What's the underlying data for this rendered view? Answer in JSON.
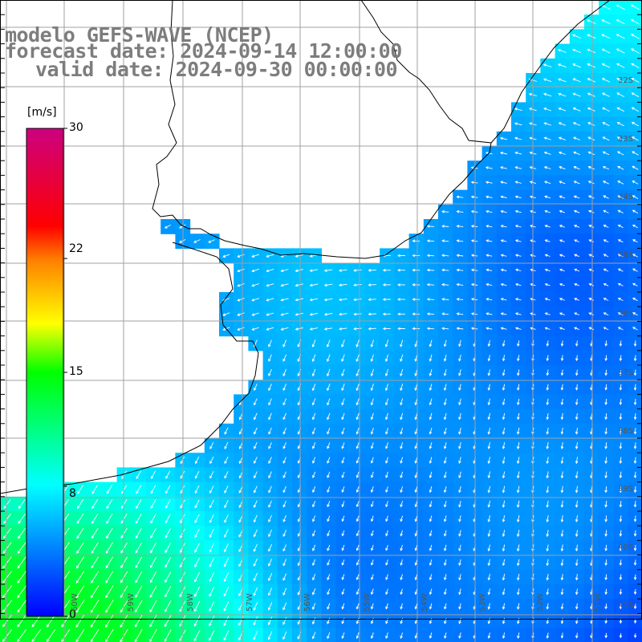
{
  "title": {
    "line1": "modelo GEFS-WAVE (NCEP)",
    "line2": "forecast date: 2024-09-14 12:00:00",
    "line3": "valid date: 2024-09-30 00:00:00"
  },
  "colorbar": {
    "unit": "[m/s]",
    "min": 0,
    "max": 30,
    "labels": [
      "30",
      "22",
      "15",
      "8",
      "0"
    ],
    "label_values": [
      30,
      22,
      15,
      8,
      0
    ]
  },
  "lat_labels": [
    "32S",
    "33S",
    "34S",
    "35S",
    "36S",
    "37S",
    "38S",
    "39S",
    "40S",
    "41S"
  ],
  "lon_labels": [
    "60W",
    "59W",
    "58W",
    "57W",
    "56W",
    "55W",
    "54W",
    "53W",
    "52W",
    "51W"
  ],
  "colors": {
    "land": "#ffffff",
    "grid": "#a0a0a0",
    "coast": "#000000",
    "arrow": "#ffffff",
    "title": "#7d7d7d"
  }
}
